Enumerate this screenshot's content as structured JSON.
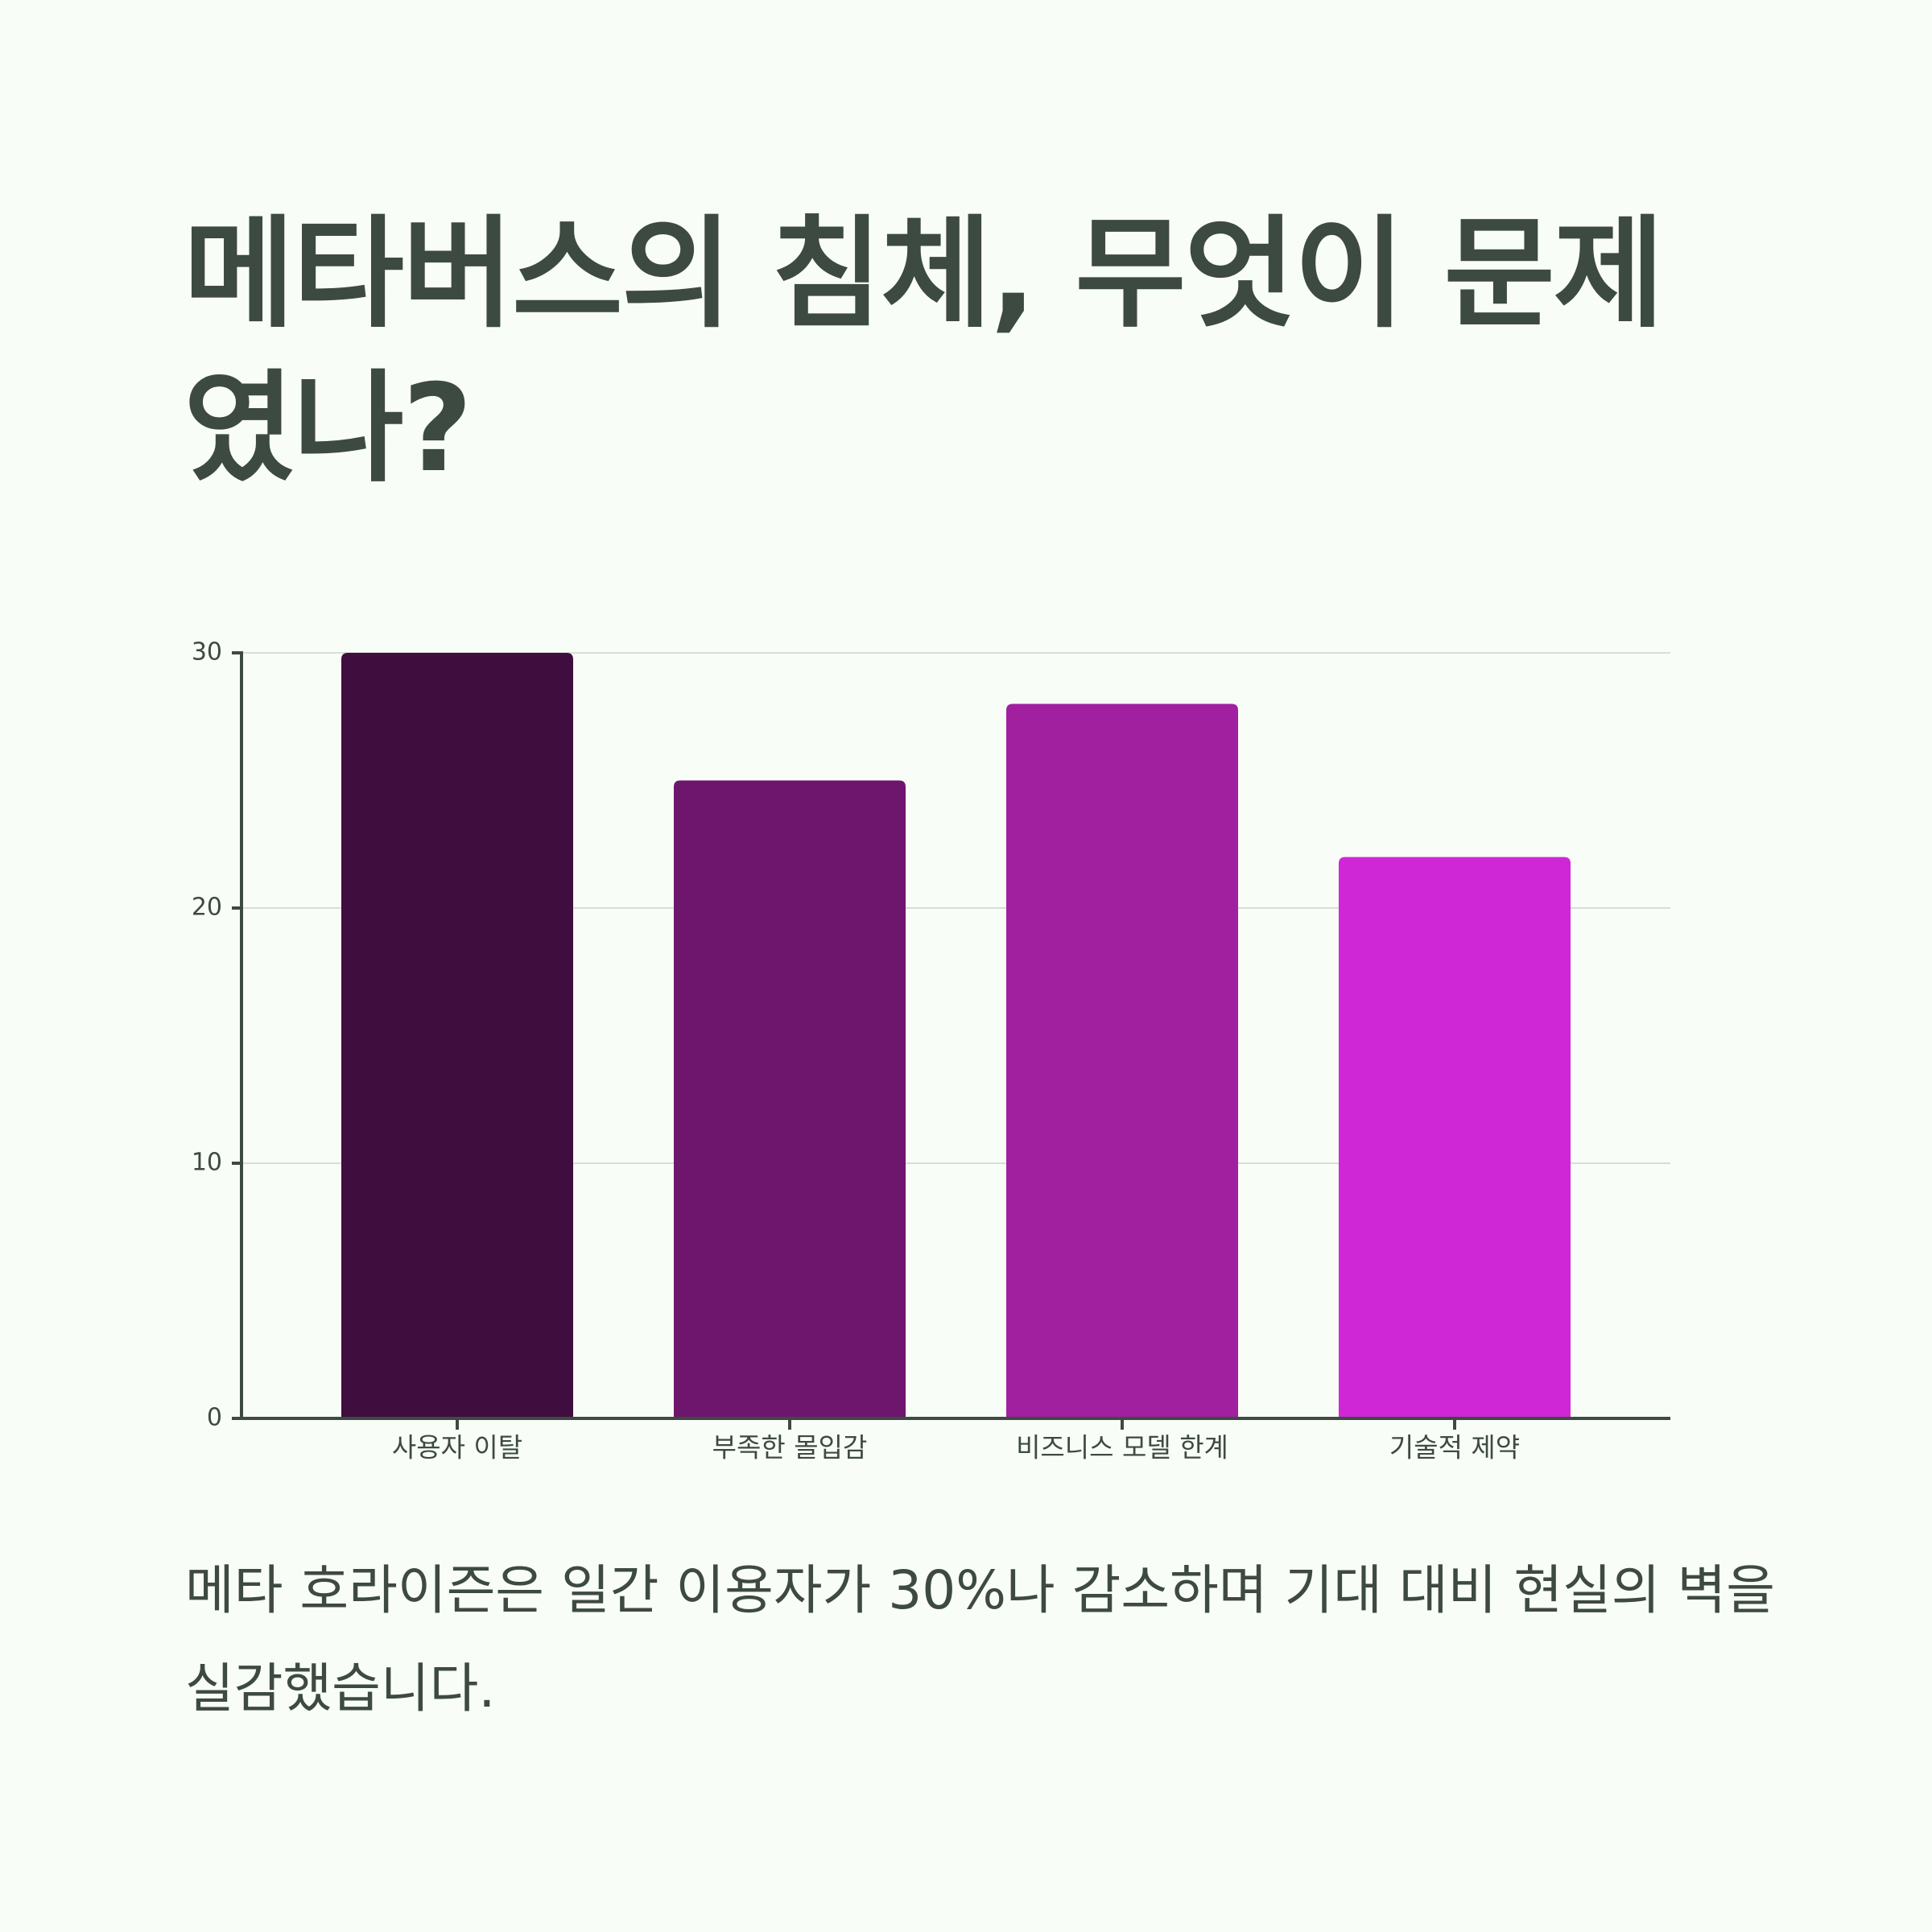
{
  "chart_data": {
    "type": "bar",
    "title": "메타버스의 침체, 무엇이 문제였나?",
    "categories": [
      "사용자 이탈",
      "부족한 몰입감",
      "비즈니스 모델 한계",
      "기술적 제약"
    ],
    "values": [
      30,
      25,
      28,
      22
    ],
    "colors": [
      "#3f0d3e",
      "#6e166e",
      "#a020a0",
      "#d027d6"
    ],
    "ylim": [
      0,
      30
    ],
    "yticks": [
      0,
      10,
      20,
      30
    ],
    "grid": true
  },
  "description": "메타 호라이즌은 일간 이용자가 30%나 감소하며 기대 대비 현실의 벽을 실감했습니다."
}
